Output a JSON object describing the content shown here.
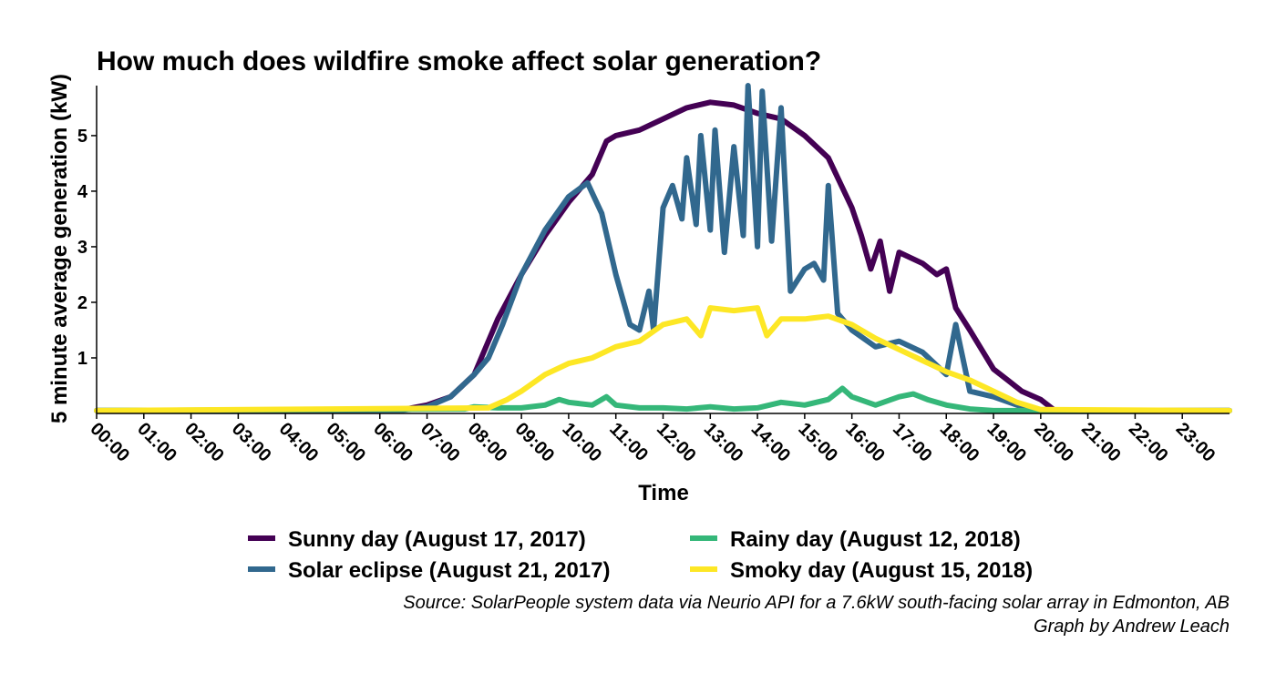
{
  "chart_data": {
    "type": "line",
    "title": "How much does wildfire smoke affect solar generation?",
    "xlabel": "Time",
    "ylabel": "5 minute average generation (kW)",
    "xlim": [
      0,
      24
    ],
    "ylim": [
      0,
      5.9
    ],
    "x_ticks": [
      0,
      1,
      2,
      3,
      4,
      5,
      6,
      7,
      8,
      9,
      10,
      11,
      12,
      13,
      14,
      15,
      16,
      17,
      18,
      19,
      20,
      21,
      22,
      23
    ],
    "x_tick_labels": [
      "00:00",
      "01:00",
      "02:00",
      "03:00",
      "04:00",
      "05:00",
      "06:00",
      "07:00",
      "08:00",
      "09:00",
      "10:00",
      "11:00",
      "12:00",
      "13:00",
      "14:00",
      "15:00",
      "16:00",
      "17:00",
      "18:00",
      "19:00",
      "20:00",
      "21:00",
      "22:00",
      "23:00"
    ],
    "y_ticks": [
      1,
      2,
      3,
      4,
      5
    ],
    "y_tick_labels": [
      "1",
      "2",
      "3",
      "4",
      "5"
    ],
    "grid": false,
    "legend_position": "bottom",
    "series": [
      {
        "name": "Sunny day (August 17, 2017)",
        "color": "#440154",
        "x": [
          0,
          6.5,
          7.0,
          7.5,
          8.0,
          8.5,
          9.0,
          9.5,
          10.0,
          10.5,
          10.8,
          11.0,
          11.5,
          12.0,
          12.5,
          13.0,
          13.5,
          14.0,
          14.5,
          15.0,
          15.5,
          16.0,
          16.2,
          16.4,
          16.6,
          16.8,
          17.0,
          17.5,
          17.8,
          18.0,
          18.2,
          18.5,
          19.0,
          19.3,
          19.6,
          20.0,
          20.3,
          24
        ],
        "y": [
          0.05,
          0.07,
          0.15,
          0.3,
          0.7,
          1.7,
          2.5,
          3.2,
          3.8,
          4.3,
          4.9,
          5.0,
          5.1,
          5.3,
          5.5,
          5.6,
          5.55,
          5.4,
          5.3,
          5.0,
          4.6,
          3.7,
          3.2,
          2.6,
          3.1,
          2.2,
          2.9,
          2.7,
          2.5,
          2.6,
          1.9,
          1.5,
          0.8,
          0.6,
          0.4,
          0.25,
          0.05,
          0.05
        ]
      },
      {
        "name": "Solar eclipse (August 21, 2017)",
        "color": "#31688e",
        "x": [
          0,
          6.5,
          7.0,
          7.5,
          8.0,
          8.3,
          8.6,
          9.0,
          9.5,
          10.0,
          10.4,
          10.7,
          11.0,
          11.3,
          11.5,
          11.7,
          11.8,
          12.0,
          12.2,
          12.4,
          12.5,
          12.7,
          12.8,
          13.0,
          13.1,
          13.3,
          13.5,
          13.7,
          13.8,
          14.0,
          14.1,
          14.3,
          14.5,
          14.7,
          15.0,
          15.2,
          15.4,
          15.5,
          15.7,
          16.0,
          16.5,
          17.0,
          17.5,
          18.0,
          18.2,
          18.5,
          19.0,
          19.5,
          20.0,
          24
        ],
        "y": [
          0.05,
          0.06,
          0.12,
          0.3,
          0.7,
          1.0,
          1.6,
          2.5,
          3.3,
          3.9,
          4.15,
          3.6,
          2.5,
          1.6,
          1.5,
          2.2,
          1.5,
          3.7,
          4.1,
          3.5,
          4.6,
          3.4,
          5.0,
          3.3,
          5.1,
          2.9,
          4.8,
          3.2,
          5.9,
          3.0,
          5.8,
          3.1,
          5.5,
          2.2,
          2.6,
          2.7,
          2.4,
          4.1,
          1.8,
          1.5,
          1.2,
          1.3,
          1.1,
          0.7,
          1.6,
          0.4,
          0.3,
          0.15,
          0.05,
          0.05
        ]
      },
      {
        "name": "Rainy day (August 12, 2018)",
        "color": "#35b779",
        "x": [
          0,
          7.8,
          8.0,
          8.5,
          9.0,
          9.5,
          9.8,
          10.0,
          10.5,
          10.8,
          11.0,
          11.5,
          12.0,
          12.5,
          13.0,
          13.5,
          14.0,
          14.5,
          15.0,
          15.5,
          15.8,
          16.0,
          16.5,
          17.0,
          17.3,
          17.6,
          18.0,
          18.5,
          19.0,
          24
        ],
        "y": [
          0.05,
          0.08,
          0.12,
          0.1,
          0.1,
          0.15,
          0.25,
          0.2,
          0.15,
          0.3,
          0.15,
          0.1,
          0.1,
          0.08,
          0.12,
          0.08,
          0.1,
          0.2,
          0.15,
          0.25,
          0.45,
          0.3,
          0.15,
          0.3,
          0.35,
          0.25,
          0.15,
          0.08,
          0.05,
          0.05
        ]
      },
      {
        "name": "Smoky day (August 15, 2018)",
        "color": "#fde725",
        "x": [
          0,
          8.3,
          8.7,
          9.0,
          9.5,
          10.0,
          10.5,
          11.0,
          11.5,
          12.0,
          12.5,
          12.8,
          13.0,
          13.5,
          14.0,
          14.2,
          14.5,
          15.0,
          15.5,
          16.0,
          16.5,
          17.0,
          17.5,
          18.0,
          18.5,
          19.0,
          19.5,
          20.0,
          24
        ],
        "y": [
          0.05,
          0.1,
          0.25,
          0.4,
          0.7,
          0.9,
          1.0,
          1.2,
          1.3,
          1.6,
          1.7,
          1.4,
          1.9,
          1.85,
          1.9,
          1.4,
          1.7,
          1.7,
          1.75,
          1.6,
          1.35,
          1.15,
          0.95,
          0.75,
          0.6,
          0.4,
          0.2,
          0.07,
          0.05
        ]
      }
    ],
    "legend": {
      "items": [
        {
          "label": "Sunny day (August 17, 2017)",
          "color": "#440154"
        },
        {
          "label": "Solar eclipse (August 21, 2017)",
          "color": "#31688e"
        },
        {
          "label": "Rainy day (August 12, 2018)",
          "color": "#35b779"
        },
        {
          "label": "Smoky day (August 15, 2018)",
          "color": "#fde725"
        }
      ]
    },
    "caption_lines": [
      "Source: SolarPeople system data via Neurio API for a 7.6kW south-facing solar array in Edmonton, AB",
      "Graph by Andrew Leach"
    ]
  }
}
